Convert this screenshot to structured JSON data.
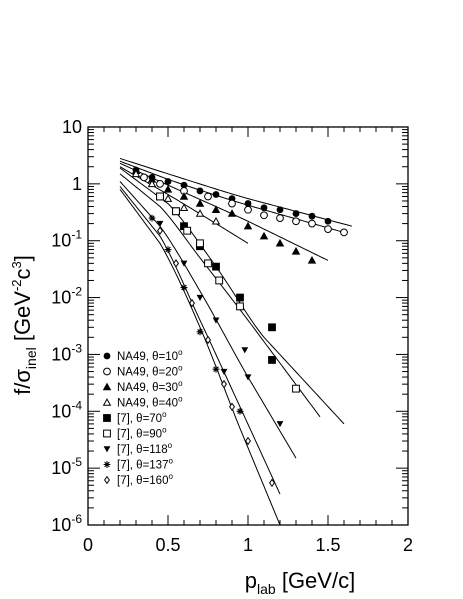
{
  "chart_data": {
    "type": "scatter",
    "xlabel": {
      "main": "p",
      "sub": "lab",
      "unit": " [GeV/c]"
    },
    "ylabel": {
      "main": "f/σ",
      "sub": "inel",
      "unit_a": " [GeV",
      "sup_a": "-2",
      "unit_b": "c",
      "sup_b": "3",
      "unit_c": "]"
    },
    "xlim": [
      0,
      2
    ],
    "ylim_log10": [
      -6,
      1
    ],
    "y_scale": "log",
    "x_ticks": [
      "0",
      "0.5",
      "1",
      "1.5",
      "2"
    ],
    "y_ticks": [
      {
        "base": "10",
        "exp": ""
      },
      {
        "base": "1",
        "exp": ""
      },
      {
        "base": "10",
        "exp": "-1"
      },
      {
        "base": "10",
        "exp": "-2"
      },
      {
        "base": "10",
        "exp": "-3"
      },
      {
        "base": "10",
        "exp": "-4"
      },
      {
        "base": "10",
        "exp": "-5"
      },
      {
        "base": "10",
        "exp": "-6"
      }
    ],
    "legend_position": "bottom-left",
    "series": [
      {
        "name": "NA49, θ=10",
        "sup": "o",
        "marker": "circle-filled",
        "points": [
          [
            0.3,
            1.75
          ],
          [
            0.4,
            1.3
          ],
          [
            0.5,
            1.1
          ],
          [
            0.6,
            0.95
          ],
          [
            0.7,
            0.75
          ],
          [
            0.8,
            0.65
          ],
          [
            0.9,
            0.55
          ],
          [
            1.0,
            0.45
          ],
          [
            1.1,
            0.38
          ],
          [
            1.2,
            0.35
          ],
          [
            1.3,
            0.3
          ],
          [
            1.4,
            0.27
          ],
          [
            1.5,
            0.22
          ]
        ],
        "curve": [
          [
            0.2,
            2.8
          ],
          [
            0.5,
            1.5
          ],
          [
            1.0,
            0.55
          ],
          [
            1.65,
            0.18
          ]
        ]
      },
      {
        "name": "NA49, θ=20",
        "sup": "o",
        "marker": "circle-open",
        "points": [
          [
            0.35,
            1.3
          ],
          [
            0.45,
            1.0
          ],
          [
            0.6,
            0.75
          ],
          [
            0.75,
            0.6
          ],
          [
            0.9,
            0.45
          ],
          [
            1.0,
            0.35
          ],
          [
            1.1,
            0.28
          ],
          [
            1.2,
            0.25
          ],
          [
            1.3,
            0.22
          ],
          [
            1.4,
            0.2
          ],
          [
            1.5,
            0.16
          ],
          [
            1.6,
            0.14
          ]
        ],
        "curve": [
          [
            0.2,
            2.5
          ],
          [
            0.5,
            1.2
          ],
          [
            1.0,
            0.42
          ],
          [
            1.6,
            0.14
          ]
        ]
      },
      {
        "name": "NA49, θ=30",
        "sup": "o",
        "marker": "triangle-filled",
        "points": [
          [
            0.3,
            1.7
          ],
          [
            0.4,
            1.2
          ],
          [
            0.5,
            0.8
          ],
          [
            0.6,
            0.6
          ],
          [
            0.7,
            0.45
          ],
          [
            0.8,
            0.35
          ],
          [
            0.9,
            0.3
          ],
          [
            1.0,
            0.18
          ],
          [
            1.1,
            0.12
          ],
          [
            1.2,
            0.09
          ],
          [
            1.3,
            0.065
          ],
          [
            1.4,
            0.045
          ]
        ],
        "curve": [
          [
            0.2,
            2.3
          ],
          [
            0.5,
            0.95
          ],
          [
            1.0,
            0.22
          ],
          [
            1.5,
            0.045
          ]
        ]
      },
      {
        "name": "NA49, θ=40",
        "sup": "o",
        "marker": "triangle-open",
        "points": [
          [
            0.3,
            1.5
          ],
          [
            0.4,
            1.0
          ],
          [
            0.5,
            0.55
          ],
          [
            0.6,
            0.38
          ],
          [
            0.7,
            0.3
          ],
          [
            0.8,
            0.22
          ]
        ],
        "curve": [
          [
            0.2,
            2.0
          ],
          [
            0.5,
            0.65
          ],
          [
            0.8,
            0.2
          ],
          [
            1.0,
            0.09
          ]
        ]
      },
      {
        "name": "[7], θ=70",
        "sup": "o",
        "marker": "square-filled",
        "points": [
          [
            0.45,
            0.6
          ],
          [
            0.55,
            0.33
          ],
          [
            0.6,
            0.18
          ],
          [
            0.7,
            0.08
          ],
          [
            0.8,
            0.035
          ],
          [
            0.95,
            0.01
          ],
          [
            1.15,
            0.003
          ],
          [
            1.15,
            0.0008
          ]
        ],
        "curve": [
          [
            0.2,
            1.9
          ],
          [
            0.5,
            0.45
          ],
          [
            0.8,
            0.035
          ],
          [
            1.1,
            0.002
          ],
          [
            1.6,
            6e-05
          ]
        ]
      },
      {
        "name": "[7], θ=90",
        "sup": "o",
        "marker": "square-open",
        "points": [
          [
            0.45,
            0.6
          ],
          [
            0.55,
            0.33
          ],
          [
            0.62,
            0.15
          ],
          [
            0.7,
            0.09
          ],
          [
            0.75,
            0.04
          ],
          [
            0.82,
            0.02
          ],
          [
            0.95,
            0.007
          ],
          [
            1.3,
            0.00025
          ]
        ],
        "curve": [
          [
            0.2,
            1.5
          ],
          [
            0.45,
            0.4
          ],
          [
            0.7,
            0.05
          ],
          [
            1.0,
            0.004
          ],
          [
            1.45,
            8e-05
          ]
        ]
      },
      {
        "name": "[7], θ=118",
        "sup": "o",
        "marker": "triangle-down-filled",
        "points": [
          [
            0.45,
            0.2
          ],
          [
            0.6,
            0.04
          ],
          [
            0.7,
            0.01
          ],
          [
            0.8,
            0.004
          ],
          [
            0.85,
            0.0005
          ],
          [
            0.98,
            0.0012
          ],
          [
            1.0,
            0.0004
          ],
          [
            1.2,
            6e-05
          ]
        ],
        "curve": [
          [
            0.2,
            1.1
          ],
          [
            0.45,
            0.18
          ],
          [
            0.7,
            0.013
          ],
          [
            1.0,
            0.0004
          ],
          [
            1.3,
            1.5e-05
          ]
        ]
      },
      {
        "name": "[7], θ=137",
        "sup": "o",
        "marker": "asterisk",
        "points": [
          [
            0.4,
            0.25
          ],
          [
            0.5,
            0.07
          ],
          [
            0.6,
            0.015
          ],
          [
            0.7,
            0.0025
          ],
          [
            0.8,
            0.00055
          ],
          [
            0.95,
            0.0001
          ]
        ],
        "curve": [
          [
            0.2,
            0.9
          ],
          [
            0.45,
            0.12
          ],
          [
            0.7,
            0.004
          ],
          [
            0.95,
            0.00012
          ],
          [
            1.2,
            3.5e-06
          ]
        ]
      },
      {
        "name": "[7], θ=160",
        "sup": "o",
        "marker": "diamond-open",
        "points": [
          [
            0.45,
            0.15
          ],
          [
            0.55,
            0.04
          ],
          [
            0.65,
            0.008
          ],
          [
            0.75,
            0.0018
          ],
          [
            0.85,
            0.0003
          ],
          [
            0.9,
            0.00012
          ],
          [
            1.0,
            3e-05
          ],
          [
            1.15,
            5.5e-06
          ]
        ],
        "curve": [
          [
            0.2,
            0.8
          ],
          [
            0.45,
            0.09
          ],
          [
            0.7,
            0.003
          ],
          [
            0.95,
            5e-05
          ],
          [
            1.2,
            1e-06
          ]
        ]
      }
    ]
  }
}
